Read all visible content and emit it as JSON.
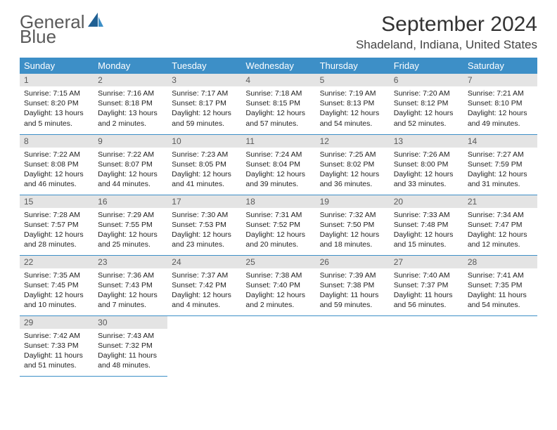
{
  "brand": {
    "part1": "General",
    "part2": "Blue"
  },
  "title": "September 2024",
  "location": "Shadeland, Indiana, United States",
  "colors": {
    "header_bg": "#3d8fc7",
    "header_text": "#ffffff",
    "daynum_bg": "#e4e4e4",
    "daynum_text": "#5a5a5a",
    "border": "#3d8fc7",
    "logo_gray": "#5a5a5a",
    "logo_blue": "#2a78b8"
  },
  "weekdays": [
    "Sunday",
    "Monday",
    "Tuesday",
    "Wednesday",
    "Thursday",
    "Friday",
    "Saturday"
  ],
  "month": {
    "year": 2024,
    "month": 9,
    "days_in_month": 30,
    "start_weekday": 0
  },
  "days": [
    {
      "n": 1,
      "sunrise": "7:15 AM",
      "sunset": "8:20 PM",
      "daylight": "13 hours and 5 minutes."
    },
    {
      "n": 2,
      "sunrise": "7:16 AM",
      "sunset": "8:18 PM",
      "daylight": "13 hours and 2 minutes."
    },
    {
      "n": 3,
      "sunrise": "7:17 AM",
      "sunset": "8:17 PM",
      "daylight": "12 hours and 59 minutes."
    },
    {
      "n": 4,
      "sunrise": "7:18 AM",
      "sunset": "8:15 PM",
      "daylight": "12 hours and 57 minutes."
    },
    {
      "n": 5,
      "sunrise": "7:19 AM",
      "sunset": "8:13 PM",
      "daylight": "12 hours and 54 minutes."
    },
    {
      "n": 6,
      "sunrise": "7:20 AM",
      "sunset": "8:12 PM",
      "daylight": "12 hours and 52 minutes."
    },
    {
      "n": 7,
      "sunrise": "7:21 AM",
      "sunset": "8:10 PM",
      "daylight": "12 hours and 49 minutes."
    },
    {
      "n": 8,
      "sunrise": "7:22 AM",
      "sunset": "8:08 PM",
      "daylight": "12 hours and 46 minutes."
    },
    {
      "n": 9,
      "sunrise": "7:22 AM",
      "sunset": "8:07 PM",
      "daylight": "12 hours and 44 minutes."
    },
    {
      "n": 10,
      "sunrise": "7:23 AM",
      "sunset": "8:05 PM",
      "daylight": "12 hours and 41 minutes."
    },
    {
      "n": 11,
      "sunrise": "7:24 AM",
      "sunset": "8:04 PM",
      "daylight": "12 hours and 39 minutes."
    },
    {
      "n": 12,
      "sunrise": "7:25 AM",
      "sunset": "8:02 PM",
      "daylight": "12 hours and 36 minutes."
    },
    {
      "n": 13,
      "sunrise": "7:26 AM",
      "sunset": "8:00 PM",
      "daylight": "12 hours and 33 minutes."
    },
    {
      "n": 14,
      "sunrise": "7:27 AM",
      "sunset": "7:59 PM",
      "daylight": "12 hours and 31 minutes."
    },
    {
      "n": 15,
      "sunrise": "7:28 AM",
      "sunset": "7:57 PM",
      "daylight": "12 hours and 28 minutes."
    },
    {
      "n": 16,
      "sunrise": "7:29 AM",
      "sunset": "7:55 PM",
      "daylight": "12 hours and 25 minutes."
    },
    {
      "n": 17,
      "sunrise": "7:30 AM",
      "sunset": "7:53 PM",
      "daylight": "12 hours and 23 minutes."
    },
    {
      "n": 18,
      "sunrise": "7:31 AM",
      "sunset": "7:52 PM",
      "daylight": "12 hours and 20 minutes."
    },
    {
      "n": 19,
      "sunrise": "7:32 AM",
      "sunset": "7:50 PM",
      "daylight": "12 hours and 18 minutes."
    },
    {
      "n": 20,
      "sunrise": "7:33 AM",
      "sunset": "7:48 PM",
      "daylight": "12 hours and 15 minutes."
    },
    {
      "n": 21,
      "sunrise": "7:34 AM",
      "sunset": "7:47 PM",
      "daylight": "12 hours and 12 minutes."
    },
    {
      "n": 22,
      "sunrise": "7:35 AM",
      "sunset": "7:45 PM",
      "daylight": "12 hours and 10 minutes."
    },
    {
      "n": 23,
      "sunrise": "7:36 AM",
      "sunset": "7:43 PM",
      "daylight": "12 hours and 7 minutes."
    },
    {
      "n": 24,
      "sunrise": "7:37 AM",
      "sunset": "7:42 PM",
      "daylight": "12 hours and 4 minutes."
    },
    {
      "n": 25,
      "sunrise": "7:38 AM",
      "sunset": "7:40 PM",
      "daylight": "12 hours and 2 minutes."
    },
    {
      "n": 26,
      "sunrise": "7:39 AM",
      "sunset": "7:38 PM",
      "daylight": "11 hours and 59 minutes."
    },
    {
      "n": 27,
      "sunrise": "7:40 AM",
      "sunset": "7:37 PM",
      "daylight": "11 hours and 56 minutes."
    },
    {
      "n": 28,
      "sunrise": "7:41 AM",
      "sunset": "7:35 PM",
      "daylight": "11 hours and 54 minutes."
    },
    {
      "n": 29,
      "sunrise": "7:42 AM",
      "sunset": "7:33 PM",
      "daylight": "11 hours and 51 minutes."
    },
    {
      "n": 30,
      "sunrise": "7:43 AM",
      "sunset": "7:32 PM",
      "daylight": "11 hours and 48 minutes."
    }
  ],
  "labels": {
    "sunrise": "Sunrise:",
    "sunset": "Sunset:",
    "daylight": "Daylight:"
  }
}
